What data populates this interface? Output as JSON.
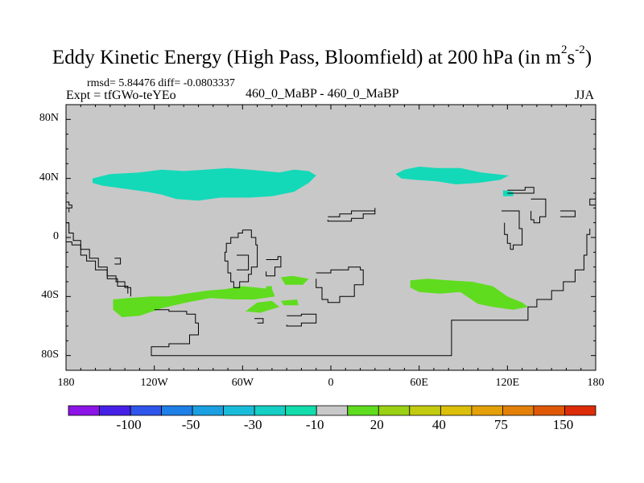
{
  "title": {
    "main": "Eddy Kinetic Energy (High Pass, Bloomfield) at 200 hPa (in m",
    "sup1": "2",
    "mid": "s",
    "sup2": "-2",
    "end": ")"
  },
  "stats_text": "rmsd= 5.84476 diff= -0.0803337",
  "expt_text": "Expt = tfGWo-teYEo",
  "subtitle": "460_0_MaBP - 460_0_MaBP",
  "season": "JJA",
  "chart_data": {
    "type": "heatmap",
    "title": "Eddy Kinetic Energy (High Pass, Bloomfield) at 200 hPa (in m2s-2)",
    "x_range": [
      -180,
      180
    ],
    "y_range": [
      -90,
      90
    ],
    "x_ticks": [
      {
        "value": -180,
        "label": "180"
      },
      {
        "value": -120,
        "label": "120W"
      },
      {
        "value": -60,
        "label": "60W"
      },
      {
        "value": 0,
        "label": "0"
      },
      {
        "value": 60,
        "label": "60E"
      },
      {
        "value": 120,
        "label": "120E"
      },
      {
        "value": 180,
        "label": "180"
      }
    ],
    "y_ticks": [
      {
        "value": 80,
        "label": "80N"
      },
      {
        "value": 40,
        "label": "40N"
      },
      {
        "value": 0,
        "label": "0"
      },
      {
        "value": -40,
        "label": "40S"
      },
      {
        "value": -80,
        "label": "80S"
      }
    ],
    "background_level": "-10 to 20",
    "regions": [
      {
        "level": "-30 to -10",
        "color": "#14d9b8",
        "points": [
          [
            -162,
            40
          ],
          [
            -150,
            43
          ],
          [
            -130,
            44
          ],
          [
            -115,
            46
          ],
          [
            -100,
            45
          ],
          [
            -85,
            46
          ],
          [
            -70,
            47
          ],
          [
            -55,
            46
          ],
          [
            -45,
            45
          ],
          [
            -35,
            44
          ],
          [
            -25,
            46
          ],
          [
            -15,
            45
          ],
          [
            -10,
            42
          ],
          [
            -15,
            37
          ],
          [
            -25,
            31
          ],
          [
            -40,
            28
          ],
          [
            -55,
            27
          ],
          [
            -75,
            27
          ],
          [
            -90,
            25
          ],
          [
            -105,
            26
          ],
          [
            -115,
            29
          ],
          [
            -125,
            31
          ],
          [
            -140,
            33
          ],
          [
            -155,
            35
          ],
          [
            -162,
            37
          ]
        ]
      },
      {
        "level": "-30 to -10",
        "color": "#14d9b8",
        "points": [
          [
            44,
            43
          ],
          [
            50,
            46
          ],
          [
            60,
            48
          ],
          [
            72,
            47
          ],
          [
            88,
            47
          ],
          [
            102,
            44
          ],
          [
            112,
            43
          ],
          [
            121,
            42
          ],
          [
            115,
            39
          ],
          [
            100,
            37
          ],
          [
            85,
            36
          ],
          [
            72,
            38
          ],
          [
            58,
            39
          ],
          [
            48,
            40
          ]
        ]
      },
      {
        "level": "-30 to -10",
        "color": "#14d9b8",
        "points": [
          [
            117,
            32
          ],
          [
            124,
            31
          ],
          [
            124,
            28
          ],
          [
            117,
            28
          ]
        ]
      },
      {
        "level": "20 to 30",
        "color": "#5fdc1e",
        "points": [
          [
            -148,
            -42
          ],
          [
            -138,
            -41
          ],
          [
            -122,
            -40
          ],
          [
            -110,
            -40
          ],
          [
            -98,
            -38
          ],
          [
            -84,
            -36
          ],
          [
            -72,
            -35
          ],
          [
            -60,
            -33
          ],
          [
            -50,
            -34
          ],
          [
            -40,
            -35
          ],
          [
            -38,
            -40
          ],
          [
            -52,
            -42
          ],
          [
            -65,
            -42
          ],
          [
            -82,
            -41
          ],
          [
            -98,
            -44
          ],
          [
            -115,
            -48
          ],
          [
            -130,
            -53
          ],
          [
            -142,
            -54
          ],
          [
            -148,
            -49
          ]
        ]
      },
      {
        "level": "20 to 30",
        "color": "#5fdc1e",
        "points": [
          [
            -50,
            -44
          ],
          [
            -40,
            -43
          ],
          [
            -35,
            -47
          ],
          [
            -48,
            -51
          ],
          [
            -58,
            -50
          ]
        ]
      },
      {
        "level": "20 to 30",
        "color": "#5fdc1e",
        "points": [
          [
            -34,
            -43
          ],
          [
            -23,
            -42
          ],
          [
            -22,
            -46
          ],
          [
            -32,
            -46
          ]
        ]
      },
      {
        "level": "20 to 30",
        "color": "#5fdc1e",
        "points": [
          [
            -34,
            -27
          ],
          [
            -26,
            -26
          ],
          [
            -15,
            -28
          ],
          [
            -19,
            -32
          ],
          [
            -31,
            -32
          ]
        ]
      },
      {
        "level": "20 to 30",
        "color": "#5fdc1e",
        "points": [
          [
            -44,
            -33
          ],
          [
            -40,
            -33
          ],
          [
            -40,
            -37
          ],
          [
            -44,
            -37
          ]
        ]
      },
      {
        "level": "20 to 30",
        "color": "#5fdc1e",
        "points": [
          [
            54,
            -29
          ],
          [
            66,
            -28
          ],
          [
            80,
            -29
          ],
          [
            96,
            -30
          ],
          [
            110,
            -33
          ],
          [
            120,
            -40
          ],
          [
            130,
            -44
          ],
          [
            134,
            -47
          ],
          [
            124,
            -49
          ],
          [
            110,
            -47
          ],
          [
            100,
            -45
          ],
          [
            88,
            -37
          ],
          [
            74,
            -38
          ],
          [
            60,
            -37
          ],
          [
            54,
            -34
          ]
        ]
      }
    ],
    "coastlines": [
      [
        [
          -180,
          10
        ],
        [
          -178,
          3
        ],
        [
          -175,
          -2
        ],
        [
          -170,
          -8
        ],
        [
          -164,
          -14
        ],
        [
          -158,
          -20
        ],
        [
          -152,
          -26
        ],
        [
          -146,
          -30
        ],
        [
          -140,
          -34
        ],
        [
          -136,
          -37
        ],
        [
          -136,
          -40
        ]
      ],
      [
        [
          -180,
          -3
        ],
        [
          -176,
          -5
        ],
        [
          -170,
          -12
        ],
        [
          -166,
          -16
        ],
        [
          -160,
          -22
        ],
        [
          -152,
          -28
        ],
        [
          -145,
          -33
        ],
        [
          -138,
          -38
        ]
      ],
      [
        [
          -180,
          24
        ],
        [
          -178,
          22
        ],
        [
          -176,
          20
        ],
        [
          -178,
          17
        ]
      ],
      [
        [
          -147,
          -14
        ],
        [
          -143,
          -14
        ],
        [
          -143,
          -18
        ],
        [
          -147,
          -18
        ]
      ],
      [
        [
          -120,
          -49
        ],
        [
          -110,
          -50
        ],
        [
          -98,
          -52
        ],
        [
          -92,
          -58
        ],
        [
          -90,
          -66
        ],
        [
          -96,
          -72
        ],
        [
          -110,
          -74
        ],
        [
          -122,
          -76
        ],
        [
          -122,
          -80
        ],
        [
          -80,
          -80
        ],
        [
          -60,
          -80
        ],
        [
          -40,
          -80
        ],
        [
          -10,
          -80
        ],
        [
          20,
          -80
        ],
        [
          60,
          -80
        ],
        [
          80,
          -80
        ],
        [
          82,
          -77
        ],
        [
          82,
          -56
        ],
        [
          100,
          -56
        ],
        [
          130,
          -56
        ],
        [
          134,
          -47
        ],
        [
          140,
          -42
        ],
        [
          150,
          -36
        ],
        [
          158,
          -30
        ],
        [
          166,
          -22
        ],
        [
          172,
          -12
        ],
        [
          174,
          -4
        ],
        [
          174,
          2
        ],
        [
          176,
          6
        ]
      ],
      [
        [
          -60,
          5
        ],
        [
          -54,
          5
        ],
        [
          -54,
          0
        ],
        [
          -51,
          -5
        ],
        [
          -50,
          -10
        ],
        [
          -50,
          -20
        ],
        [
          -54,
          -25
        ],
        [
          -56,
          -30
        ],
        [
          -62,
          -34
        ],
        [
          -66,
          -30
        ],
        [
          -68,
          -24
        ],
        [
          -70,
          -16
        ],
        [
          -72,
          -10
        ],
        [
          -71,
          -4
        ],
        [
          -68,
          0
        ],
        [
          -63,
          3
        ],
        [
          -60,
          5
        ]
      ],
      [
        [
          -64,
          -12
        ],
        [
          -56,
          -13
        ],
        [
          -56,
          -22
        ],
        [
          -64,
          -22
        ]
      ],
      [
        [
          -44,
          -15
        ],
        [
          -36,
          -13
        ],
        [
          -34,
          -20
        ],
        [
          -38,
          -26
        ],
        [
          -44,
          -23
        ]
      ],
      [
        [
          -10,
          -24
        ],
        [
          0,
          -22
        ],
        [
          12,
          -20
        ],
        [
          20,
          -22
        ],
        [
          22,
          -32
        ],
        [
          16,
          -40
        ],
        [
          6,
          -44
        ],
        [
          -2,
          -42
        ],
        [
          -6,
          -34
        ],
        [
          -10,
          -28
        ]
      ],
      [
        [
          -2,
          14
        ],
        [
          6,
          16
        ],
        [
          14,
          18
        ],
        [
          22,
          18
        ],
        [
          30,
          20
        ],
        [
          30,
          16
        ],
        [
          22,
          13
        ],
        [
          14,
          11
        ],
        [
          6,
          11
        ],
        [
          -2,
          12
        ]
      ],
      [
        [
          -52,
          -55
        ],
        [
          -46,
          -55
        ],
        [
          -46,
          -58
        ],
        [
          -50,
          -58
        ]
      ],
      [
        [
          -30,
          -53
        ],
        [
          -20,
          -52
        ],
        [
          -10,
          -54
        ],
        [
          -10,
          -58
        ],
        [
          -20,
          -60
        ],
        [
          -30,
          -59
        ]
      ],
      [
        [
          116,
          18
        ],
        [
          128,
          18
        ],
        [
          128,
          6
        ],
        [
          130,
          0
        ],
        [
          130,
          -5
        ],
        [
          124,
          -8
        ],
        [
          122,
          -4
        ],
        [
          120,
          2
        ],
        [
          118,
          10
        ]
      ],
      [
        [
          136,
          26
        ],
        [
          146,
          26
        ],
        [
          146,
          14
        ],
        [
          142,
          10
        ],
        [
          138,
          12
        ],
        [
          136,
          18
        ]
      ],
      [
        [
          156,
          18
        ],
        [
          166,
          18
        ],
        [
          166,
          14
        ],
        [
          156,
          14
        ]
      ],
      [
        [
          120,
          32
        ],
        [
          130,
          32
        ],
        [
          132,
          34
        ],
        [
          138,
          34
        ],
        [
          138,
          30
        ],
        [
          128,
          30
        ],
        [
          120,
          30
        ]
      ],
      [
        [
          180,
          26
        ],
        [
          176,
          24
        ],
        [
          176,
          22
        ],
        [
          180,
          20
        ]
      ]
    ],
    "colorbar": {
      "colors": [
        "#8c14e6",
        "#4620e6",
        "#2f55ea",
        "#1e7fe6",
        "#1aa0e0",
        "#19bcd8",
        "#15cec4",
        "#12dcac",
        "#c8c8c8",
        "#5fdc1e",
        "#9ad114",
        "#c3cb10",
        "#dcbf0a",
        "#e4a008",
        "#e28008",
        "#e05806",
        "#dc2c08"
      ],
      "tick_labels": [
        "-100",
        "-50",
        "-30",
        "-10",
        "20",
        "40",
        "75",
        "150"
      ]
    }
  }
}
